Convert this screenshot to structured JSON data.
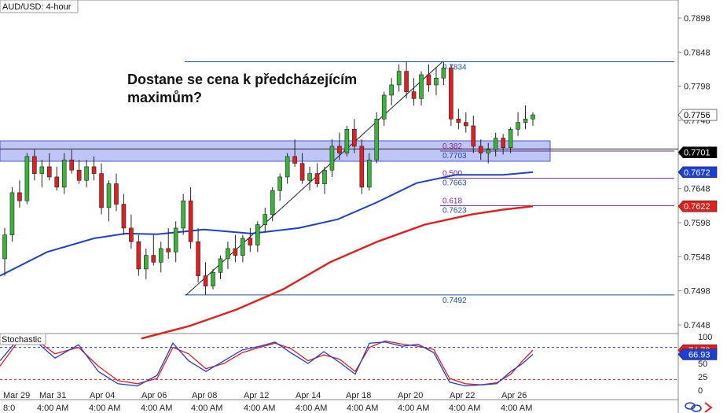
{
  "chart_data": {
    "type": "candlestick",
    "title": "AUD/USD: 4-hour",
    "annotation": [
      "Dostane se cena k předcházejícím",
      "maximům?"
    ],
    "y_range": [
      0.7428,
      0.7918
    ],
    "y_ticks": [
      "0.7898",
      "0.7848",
      "0.7798",
      "0.7748",
      "0.7698",
      "0.7648",
      "0.7598",
      "0.7548",
      "0.7498",
      "0.7448"
    ],
    "x_labels_top": [
      "Mar 29",
      "Mar 31",
      "Apr 04",
      "Apr 06",
      "Apr 08",
      "Apr 12",
      "Apr 14",
      "Apr 18",
      "Apr 20",
      "Apr 22",
      "Apr 26"
    ],
    "x_labels_bottom": [
      "8:0",
      "4:00 AM",
      "4:00 AM",
      "4:00 AM",
      "4:00 AM",
      "4:00 AM",
      "4:00 AM",
      "4:00 AM",
      "4:00 AM",
      "4:00 AM",
      "4:00 AM",
      "4:00 AM"
    ],
    "price_badges": [
      {
        "label": "0.7756",
        "value": 0.7756,
        "bg": "#ffffff",
        "fg": "#000000"
      },
      {
        "label": "0.7701",
        "value": 0.7701,
        "bg": "#000000",
        "fg": "#ffffff"
      },
      {
        "label": "0.7672",
        "value": 0.7672,
        "bg": "#1f3fd1",
        "fg": "#ffffff"
      },
      {
        "label": "0.7622",
        "value": 0.7622,
        "bg": "#e0201d",
        "fg": "#ffffff"
      }
    ],
    "fib_levels": [
      {
        "label": "0.7834",
        "value": 0.7834
      },
      {
        "label": "0.382",
        "label2": "0.7703",
        "value": 0.7703
      },
      {
        "label": "0.500",
        "label2": "0.7663",
        "value": 0.7663
      },
      {
        "label": "0.618",
        "label2": "0.7623",
        "value": 0.7623
      },
      {
        "label": "0.7492",
        "value": 0.7492
      }
    ],
    "support_zone": [
      0.7688,
      0.7718
    ],
    "horizontal_line": 0.7706,
    "indicator": {
      "name": "Stochastic",
      "y_ticks": [
        "100",
        "75",
        "50",
        "25",
        "0"
      ],
      "badges": [
        {
          "label": "74.78",
          "value": 74.78,
          "bg": "#e0201d"
        },
        {
          "label": "66.93",
          "value": 66.93,
          "bg": "#1f3fd1"
        }
      ],
      "levels": [
        80,
        20
      ]
    },
    "candles": [
      [
        0.7545,
        0.759,
        0.752,
        0.758
      ],
      [
        0.758,
        0.765,
        0.757,
        0.7642
      ],
      [
        0.7642,
        0.766,
        0.762,
        0.763
      ],
      [
        0.763,
        0.77,
        0.7625,
        0.7695
      ],
      [
        0.7695,
        0.7705,
        0.766,
        0.767
      ],
      [
        0.767,
        0.769,
        0.765,
        0.768
      ],
      [
        0.768,
        0.77,
        0.766,
        0.7665
      ],
      [
        0.7665,
        0.768,
        0.7645,
        0.765
      ],
      [
        0.765,
        0.77,
        0.764,
        0.769
      ],
      [
        0.769,
        0.7705,
        0.767,
        0.7675
      ],
      [
        0.7675,
        0.769,
        0.7655,
        0.766
      ],
      [
        0.766,
        0.769,
        0.765,
        0.768
      ],
      [
        0.768,
        0.7695,
        0.766,
        0.767
      ],
      [
        0.767,
        0.7685,
        0.761,
        0.762
      ],
      [
        0.762,
        0.766,
        0.76,
        0.7655
      ],
      [
        0.7655,
        0.767,
        0.7615,
        0.7625
      ],
      [
        0.7625,
        0.764,
        0.758,
        0.759
      ],
      [
        0.759,
        0.761,
        0.756,
        0.757
      ],
      [
        0.757,
        0.758,
        0.752,
        0.753
      ],
      [
        0.753,
        0.756,
        0.7515,
        0.755
      ],
      [
        0.755,
        0.758,
        0.7535,
        0.754
      ],
      [
        0.754,
        0.757,
        0.7525,
        0.756
      ],
      [
        0.756,
        0.759,
        0.7545,
        0.7555
      ],
      [
        0.7555,
        0.76,
        0.754,
        0.759
      ],
      [
        0.759,
        0.764,
        0.758,
        0.763
      ],
      [
        0.763,
        0.765,
        0.756,
        0.757
      ],
      [
        0.757,
        0.759,
        0.751,
        0.752
      ],
      [
        0.752,
        0.754,
        0.7492,
        0.7505
      ],
      [
        0.7505,
        0.753,
        0.75,
        0.7525
      ],
      [
        0.7525,
        0.755,
        0.7515,
        0.7545
      ],
      [
        0.7545,
        0.757,
        0.753,
        0.756
      ],
      [
        0.756,
        0.758,
        0.754,
        0.755
      ],
      [
        0.755,
        0.758,
        0.754,
        0.7575
      ],
      [
        0.7575,
        0.759,
        0.7555,
        0.7565
      ],
      [
        0.7565,
        0.76,
        0.7555,
        0.7595
      ],
      [
        0.7595,
        0.762,
        0.7585,
        0.761
      ],
      [
        0.761,
        0.765,
        0.76,
        0.7645
      ],
      [
        0.7645,
        0.767,
        0.763,
        0.7665
      ],
      [
        0.7665,
        0.77,
        0.7655,
        0.7695
      ],
      [
        0.7695,
        0.772,
        0.768,
        0.7685
      ],
      [
        0.7685,
        0.77,
        0.7655,
        0.766
      ],
      [
        0.766,
        0.768,
        0.7645,
        0.767
      ],
      [
        0.767,
        0.7685,
        0.765,
        0.7655
      ],
      [
        0.7655,
        0.768,
        0.764,
        0.7675
      ],
      [
        0.7675,
        0.772,
        0.7665,
        0.771
      ],
      [
        0.771,
        0.773,
        0.769,
        0.77
      ],
      [
        0.77,
        0.774,
        0.7695,
        0.7735
      ],
      [
        0.7735,
        0.775,
        0.77,
        0.771
      ],
      [
        0.771,
        0.772,
        0.764,
        0.765
      ],
      [
        0.765,
        0.77,
        0.7645,
        0.769
      ],
      [
        0.769,
        0.776,
        0.7685,
        0.775
      ],
      [
        0.775,
        0.779,
        0.774,
        0.7785
      ],
      [
        0.7785,
        0.781,
        0.777,
        0.78
      ],
      [
        0.78,
        0.783,
        0.779,
        0.782
      ],
      [
        0.782,
        0.7834,
        0.778,
        0.779
      ],
      [
        0.779,
        0.781,
        0.777,
        0.778
      ],
      [
        0.778,
        0.782,
        0.777,
        0.7815
      ],
      [
        0.7815,
        0.783,
        0.779,
        0.78
      ],
      [
        0.78,
        0.7825,
        0.7785,
        0.781
      ],
      [
        0.781,
        0.7834,
        0.78,
        0.7825
      ],
      [
        0.7825,
        0.783,
        0.774,
        0.775
      ],
      [
        0.775,
        0.7765,
        0.7735,
        0.7745
      ],
      [
        0.7745,
        0.776,
        0.773,
        0.774
      ],
      [
        0.774,
        0.7755,
        0.77,
        0.771
      ],
      [
        0.771,
        0.772,
        0.769,
        0.77
      ],
      [
        0.77,
        0.7715,
        0.7685,
        0.7705
      ],
      [
        0.7705,
        0.773,
        0.7695,
        0.7722
      ],
      [
        0.7722,
        0.7728,
        0.7698,
        0.7708
      ],
      [
        0.7708,
        0.7738,
        0.77,
        0.7735
      ],
      [
        0.7735,
        0.776,
        0.7725,
        0.7745
      ],
      [
        0.7745,
        0.777,
        0.7735,
        0.775
      ],
      [
        0.775,
        0.776,
        0.774,
        0.7756
      ]
    ]
  }
}
